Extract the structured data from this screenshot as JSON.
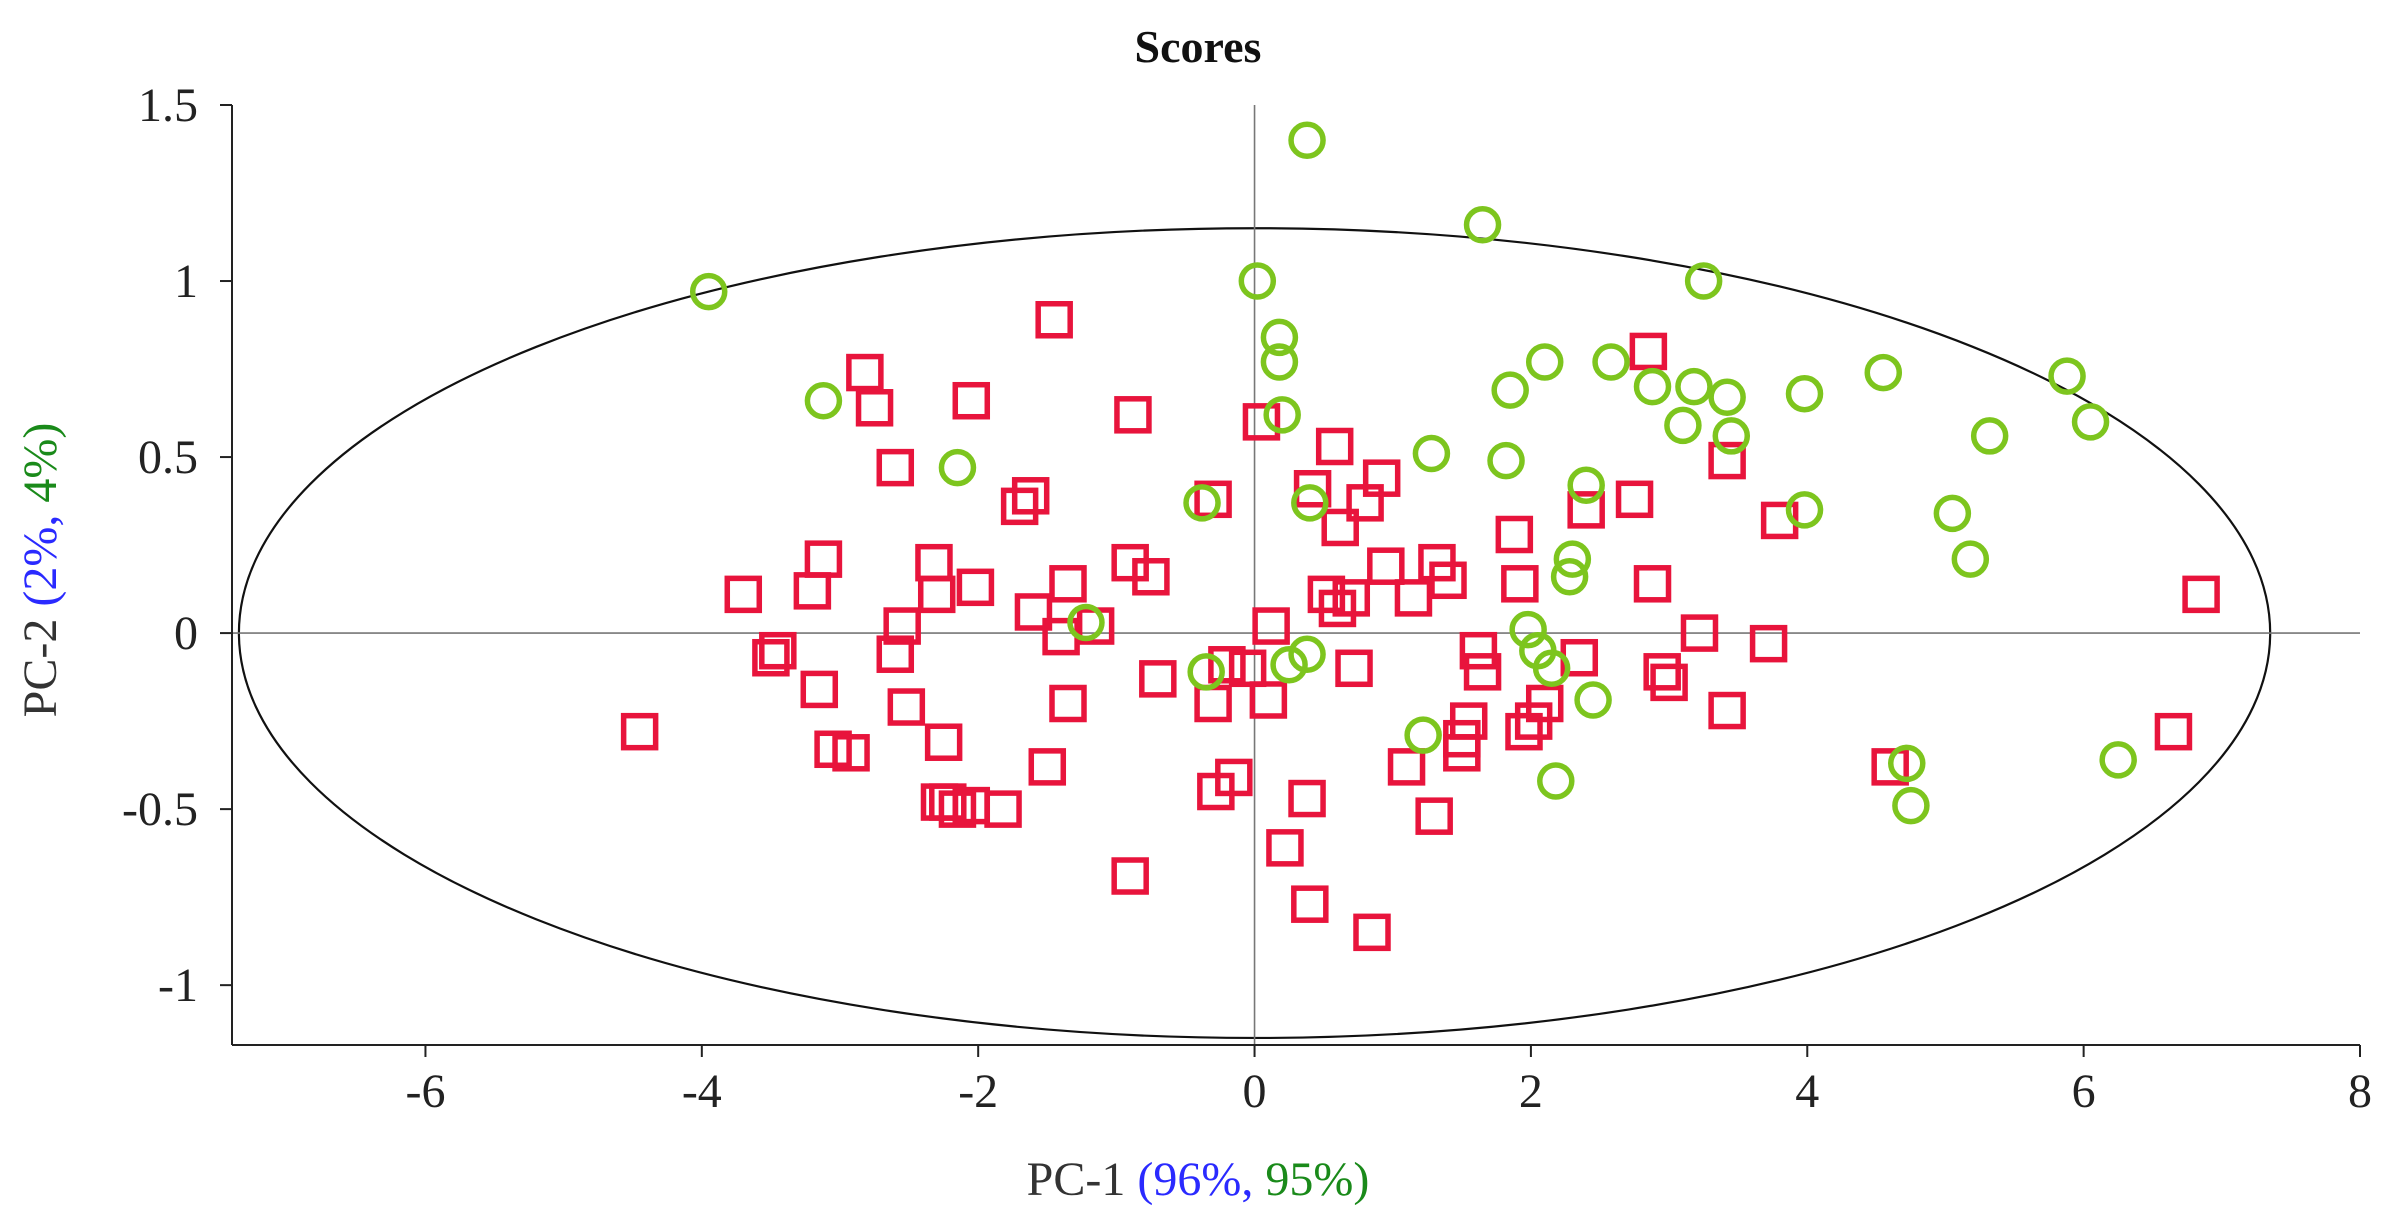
{
  "chart_data": {
    "type": "scatter",
    "title": "Scores",
    "xlabel": {
      "text": "PC-1",
      "parts": [
        {
          "text": "PC-1 ",
          "color": "#333333"
        },
        {
          "text": "(96%, ",
          "color": "#2a2aff"
        },
        {
          "text": "95%)",
          "color": "#1a8a1a"
        }
      ]
    },
    "ylabel": {
      "text": "PC-2",
      "parts": [
        {
          "text": "PC-2 ",
          "color": "#333333"
        },
        {
          "text": "(2%, ",
          "color": "#2a2aff"
        },
        {
          "text": "4%)",
          "color": "#1a8a1a"
        }
      ]
    },
    "xlim": [
      -7.4,
      8
    ],
    "ylim": [
      -1.17,
      1.5
    ],
    "xticks": [
      -6,
      -4,
      -2,
      0,
      2,
      4,
      6,
      8
    ],
    "xtick_labels": [
      "-6",
      "-4",
      "-2",
      "0",
      "2",
      "4",
      "6",
      "8"
    ],
    "yticks": [
      1.5,
      1,
      0.5,
      0,
      -0.5,
      -1
    ],
    "ytick_labels": [
      "1.5",
      "1",
      "0.5",
      "0",
      "-0.5",
      "-1"
    ],
    "grid": false,
    "ellipse": {
      "cx": 0,
      "cy": 0,
      "rx": 7.35,
      "ry": 1.15
    },
    "series": [
      {
        "marker": "square",
        "color": "#e8143c",
        "points": [
          [
            -4.45,
            -0.28
          ],
          [
            -3.7,
            0.11
          ],
          [
            -3.5,
            -0.07
          ],
          [
            -3.45,
            -0.05
          ],
          [
            -3.2,
            0.12
          ],
          [
            -3.12,
            0.21
          ],
          [
            -3.15,
            -0.16
          ],
          [
            -3.05,
            -0.33
          ],
          [
            -2.92,
            -0.34
          ],
          [
            -2.82,
            0.74
          ],
          [
            -2.75,
            0.64
          ],
          [
            -2.6,
            0.47
          ],
          [
            -2.6,
            -0.06
          ],
          [
            -2.55,
            0.02
          ],
          [
            -2.52,
            -0.21
          ],
          [
            -2.32,
            0.2
          ],
          [
            -2.3,
            0.11
          ],
          [
            -2.25,
            -0.31
          ],
          [
            -2.28,
            -0.48
          ],
          [
            -2.22,
            -0.48
          ],
          [
            -2.15,
            -0.5
          ],
          [
            -2.05,
            -0.49
          ],
          [
            -2.05,
            0.66
          ],
          [
            -2.02,
            0.13
          ],
          [
            -1.82,
            -0.5
          ],
          [
            -1.7,
            0.36
          ],
          [
            -1.62,
            0.39
          ],
          [
            -1.6,
            0.06
          ],
          [
            -1.5,
            -0.38
          ],
          [
            -1.45,
            0.89
          ],
          [
            -1.4,
            -0.01
          ],
          [
            -1.35,
            0.14
          ],
          [
            -1.35,
            -0.2
          ],
          [
            -1.15,
            0.02
          ],
          [
            -0.9,
            0.2
          ],
          [
            -0.88,
            0.62
          ],
          [
            -0.9,
            -0.69
          ],
          [
            -0.75,
            0.16
          ],
          [
            -0.7,
            -0.13
          ],
          [
            -0.3,
            0.38
          ],
          [
            -0.3,
            -0.2
          ],
          [
            -0.28,
            -0.45
          ],
          [
            -0.2,
            -0.09
          ],
          [
            -0.15,
            -0.41
          ],
          [
            -0.05,
            -0.1
          ],
          [
            0.05,
            0.6
          ],
          [
            0.12,
            0.02
          ],
          [
            0.1,
            -0.19
          ],
          [
            0.22,
            -0.61
          ],
          [
            0.4,
            -0.77
          ],
          [
            0.38,
            -0.47
          ],
          [
            0.42,
            0.41
          ],
          [
            0.52,
            0.11
          ],
          [
            0.58,
            0.53
          ],
          [
            0.6,
            0.07
          ],
          [
            0.62,
            0.3
          ],
          [
            0.7,
            0.1
          ],
          [
            0.72,
            -0.1
          ],
          [
            0.8,
            0.37
          ],
          [
            0.85,
            -0.85
          ],
          [
            0.92,
            0.44
          ],
          [
            0.95,
            0.19
          ],
          [
            1.1,
            -0.38
          ],
          [
            1.15,
            0.1
          ],
          [
            1.3,
            -0.52
          ],
          [
            1.32,
            0.2
          ],
          [
            1.4,
            0.15
          ],
          [
            1.5,
            -0.3
          ],
          [
            1.5,
            -0.34
          ],
          [
            1.55,
            -0.25
          ],
          [
            1.62,
            -0.05
          ],
          [
            1.65,
            -0.11
          ],
          [
            1.88,
            0.28
          ],
          [
            1.92,
            0.14
          ],
          [
            1.95,
            -0.28
          ],
          [
            2.02,
            -0.25
          ],
          [
            2.1,
            -0.2
          ],
          [
            2.35,
            -0.07
          ],
          [
            2.4,
            0.35
          ],
          [
            2.75,
            0.38
          ],
          [
            2.85,
            0.8
          ],
          [
            2.88,
            0.14
          ],
          [
            2.95,
            -0.11
          ],
          [
            3.0,
            -0.14
          ],
          [
            3.22,
            0.0
          ],
          [
            3.42,
            -0.22
          ],
          [
            3.42,
            0.49
          ],
          [
            3.72,
            -0.03
          ],
          [
            3.8,
            0.32
          ],
          [
            4.6,
            -0.38
          ],
          [
            6.65,
            -0.28
          ],
          [
            6.85,
            0.11
          ]
        ]
      },
      {
        "marker": "circle",
        "color": "#7dc51e",
        "points": [
          [
            -3.95,
            0.97
          ],
          [
            -3.12,
            0.66
          ],
          [
            -2.15,
            0.47
          ],
          [
            -1.22,
            0.03
          ],
          [
            -0.38,
            0.37
          ],
          [
            -0.35,
            -0.11
          ],
          [
            0.02,
            1.0
          ],
          [
            0.18,
            0.84
          ],
          [
            0.18,
            0.77
          ],
          [
            0.2,
            0.62
          ],
          [
            0.25,
            -0.09
          ],
          [
            0.38,
            1.4
          ],
          [
            0.38,
            -0.06
          ],
          [
            0.4,
            0.37
          ],
          [
            1.28,
            0.51
          ],
          [
            1.22,
            -0.29
          ],
          [
            1.65,
            1.16
          ],
          [
            1.82,
            0.49
          ],
          [
            1.85,
            0.69
          ],
          [
            1.98,
            0.01
          ],
          [
            2.05,
            -0.05
          ],
          [
            2.1,
            0.77
          ],
          [
            2.15,
            -0.1
          ],
          [
            2.18,
            -0.42
          ],
          [
            2.28,
            0.16
          ],
          [
            2.3,
            0.21
          ],
          [
            2.4,
            0.42
          ],
          [
            2.45,
            -0.19
          ],
          [
            2.58,
            0.77
          ],
          [
            2.88,
            0.7
          ],
          [
            3.1,
            0.59
          ],
          [
            3.18,
            0.7
          ],
          [
            3.25,
            1.0
          ],
          [
            3.42,
            0.67
          ],
          [
            3.45,
            0.56
          ],
          [
            3.98,
            0.68
          ],
          [
            3.98,
            0.35
          ],
          [
            4.55,
            0.74
          ],
          [
            4.72,
            -0.37
          ],
          [
            4.75,
            -0.49
          ],
          [
            5.05,
            0.34
          ],
          [
            5.18,
            0.21
          ],
          [
            5.32,
            0.56
          ],
          [
            5.88,
            0.73
          ],
          [
            6.05,
            0.6
          ],
          [
            6.25,
            -0.36
          ]
        ]
      }
    ]
  }
}
